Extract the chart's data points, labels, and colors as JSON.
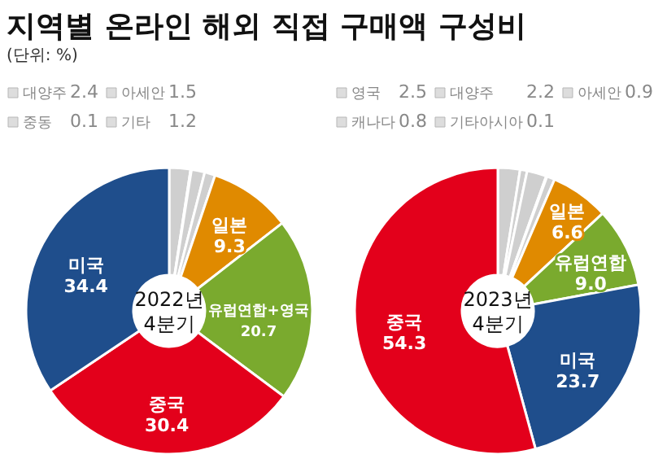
{
  "chart_data": [
    {
      "type": "donut",
      "title": "지역별 온라인 해외 직접 구매액 구성비",
      "subtitle": "(단위: %)",
      "annotations": [
        "2022년 4분기"
      ],
      "categories": [
        "대양주",
        "중동",
        "아세안",
        "기타",
        "일본",
        "유럽연합+영국",
        "중국",
        "미국"
      ],
      "values": [
        2.4,
        0.1,
        1.5,
        1.2,
        9.3,
        20.7,
        30.4,
        34.4
      ],
      "value_labels": [
        "2.4",
        "0.1",
        "1.5",
        "1.2",
        "9.3",
        "20.7",
        "30.4",
        "34.4"
      ],
      "colors": [
        "#cfcfcf",
        "#cfcfcf",
        "#cfcfcf",
        "#cfcfcf",
        "#e08a00",
        "#7aaa2e",
        "#e3001b",
        "#1f4e8c"
      ],
      "legend": "top"
    },
    {
      "type": "donut",
      "annotations": [
        "2023년 4분기"
      ],
      "categories": [
        "영국",
        "캐나다",
        "대양주",
        "기타아시아",
        "아세안",
        "일본",
        "유럽연합",
        "미국",
        "중국"
      ],
      "values": [
        2.5,
        0.8,
        2.2,
        0.1,
        0.9,
        6.6,
        9.0,
        23.7,
        54.3
      ],
      "value_labels": [
        "2.5",
        "0.8",
        "2.2",
        "0.1",
        "0.9",
        "6.6",
        "9.0",
        "23.7",
        "54.3"
      ],
      "colors": [
        "#cfcfcf",
        "#cfcfcf",
        "#cfcfcf",
        "#cfcfcf",
        "#cfcfcf",
        "#e08a00",
        "#7aaa2e",
        "#1f4e8c",
        "#e3001b"
      ],
      "legend": "top"
    }
  ]
}
